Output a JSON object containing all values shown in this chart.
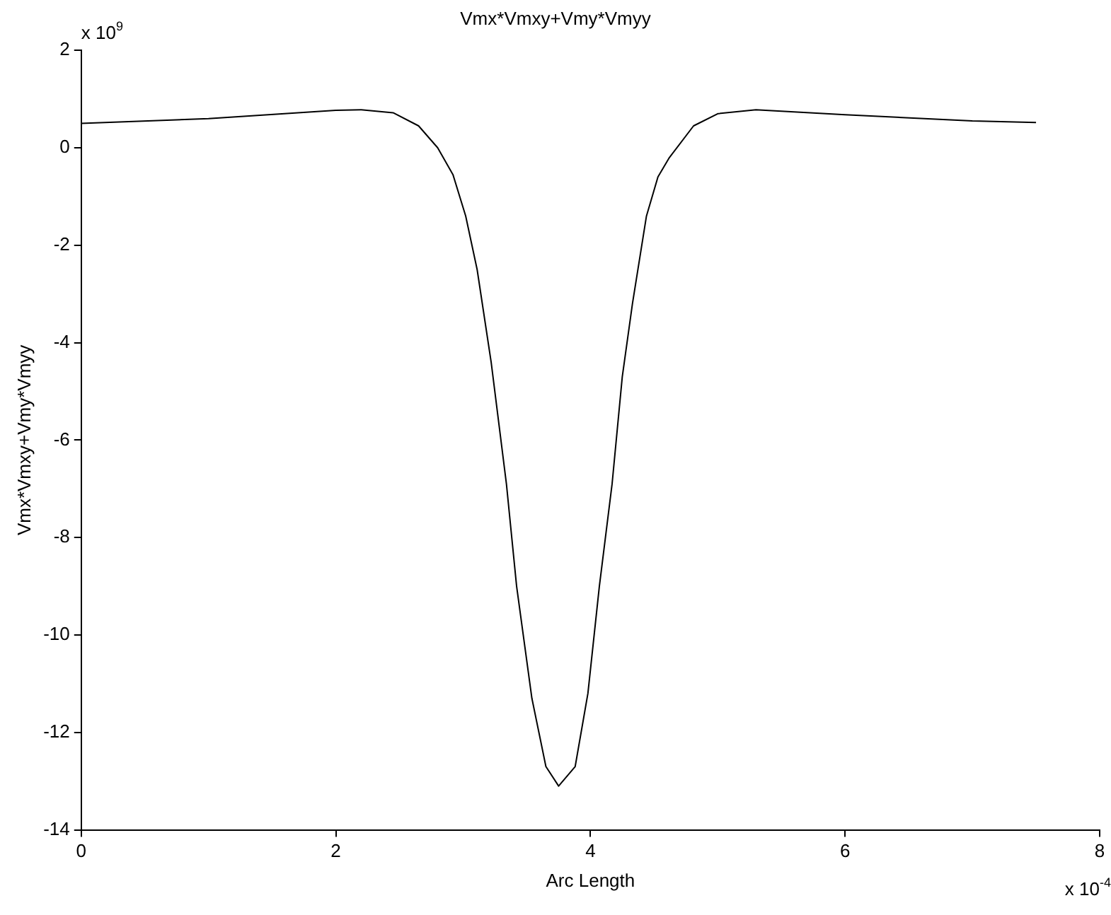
{
  "chart_data": {
    "type": "line",
    "title": "Vmx*Vmxy+Vmy*Vmyy",
    "xlabel": "Arc Length",
    "ylabel": "Vmx*Vmxy+Vmy*Vmyy",
    "annotations": [
      "x 10$^{9}$",
      "x 10$^{-4}$"
    ],
    "x": [
      0,
      1,
      2,
      2.2,
      2.45,
      2.65,
      2.8,
      2.92,
      3.02,
      3.11,
      3.22,
      3.34,
      3.42,
      3.54,
      3.65,
      3.75,
      3.88,
      3.98,
      4.07,
      4.17,
      4.25,
      4.33,
      4.44,
      4.53,
      4.62,
      4.81,
      5.0,
      5.3,
      6,
      7,
      7.5
    ],
    "series": [
      {
        "color": "#000000",
        "values": [
          0.5,
          0.6,
          0.77,
          0.78,
          0.72,
          0.45,
          0.0,
          -0.55,
          -1.4,
          -2.5,
          -4.4,
          -6.9,
          -9.0,
          -11.3,
          -12.7,
          -13.1,
          -12.7,
          -11.2,
          -9.0,
          -6.9,
          -4.7,
          -3.2,
          -1.4,
          -0.6,
          -0.2,
          0.45,
          0.7,
          0.78,
          0.68,
          0.55,
          0.52
        ]
      }
    ],
    "xlim": [
      0,
      8
    ],
    "xticks": [
      0,
      2,
      4,
      6,
      8
    ],
    "ylim": [
      -14,
      2
    ],
    "yticks": [
      -14,
      -12,
      -10,
      -8,
      -6,
      -4,
      -2,
      0,
      2
    ],
    "grid": false,
    "legend": false,
    "marker": "none",
    "line_style": "solid"
  }
}
